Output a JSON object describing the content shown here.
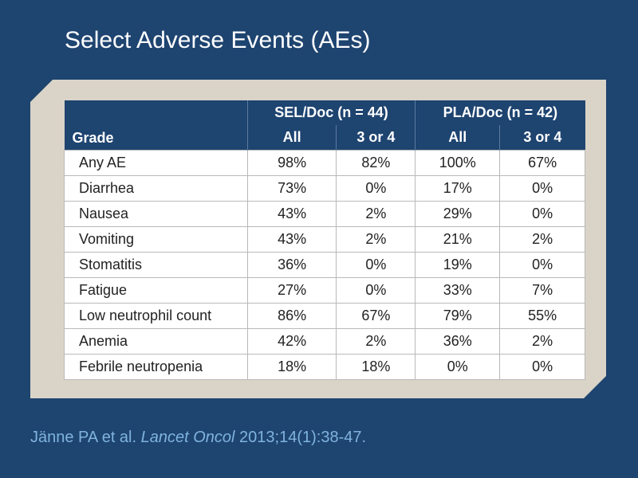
{
  "title": "Select Adverse Events (AEs)",
  "table": {
    "group_headers": [
      "SEL/Doc (n = 44)",
      "PLA/Doc (n = 42)"
    ],
    "row_header": "Grade",
    "sub_headers": [
      "All",
      "3 or 4",
      "All",
      "3 or 4"
    ],
    "rows": [
      {
        "label": "Any AE",
        "values": [
          "98%",
          "82%",
          "100%",
          "67%"
        ]
      },
      {
        "label": "Diarrhea",
        "values": [
          "73%",
          "0%",
          "17%",
          "0%"
        ]
      },
      {
        "label": "Nausea",
        "values": [
          "43%",
          "2%",
          "29%",
          "0%"
        ]
      },
      {
        "label": "Vomiting",
        "values": [
          "43%",
          "2%",
          "21%",
          "2%"
        ]
      },
      {
        "label": "Stomatitis",
        "values": [
          "36%",
          "0%",
          "19%",
          "0%"
        ]
      },
      {
        "label": "Fatigue",
        "values": [
          "27%",
          "0%",
          "33%",
          "7%"
        ]
      },
      {
        "label": "Low neutrophil count",
        "values": [
          "86%",
          "67%",
          "79%",
          "55%"
        ]
      },
      {
        "label": "Anemia",
        "values": [
          "42%",
          "2%",
          "36%",
          "2%"
        ]
      },
      {
        "label": "Febrile neutropenia",
        "values": [
          "18%",
          "18%",
          "0%",
          "0%"
        ]
      }
    ]
  },
  "citation": {
    "authors": "Jänne PA et al.",
    "journal": "Lancet Oncol",
    "ref": "2013;14(1):38-47."
  },
  "colors": {
    "background": "#1e4470",
    "panel": "#d9d4c7",
    "citation": "#7fb3df"
  }
}
